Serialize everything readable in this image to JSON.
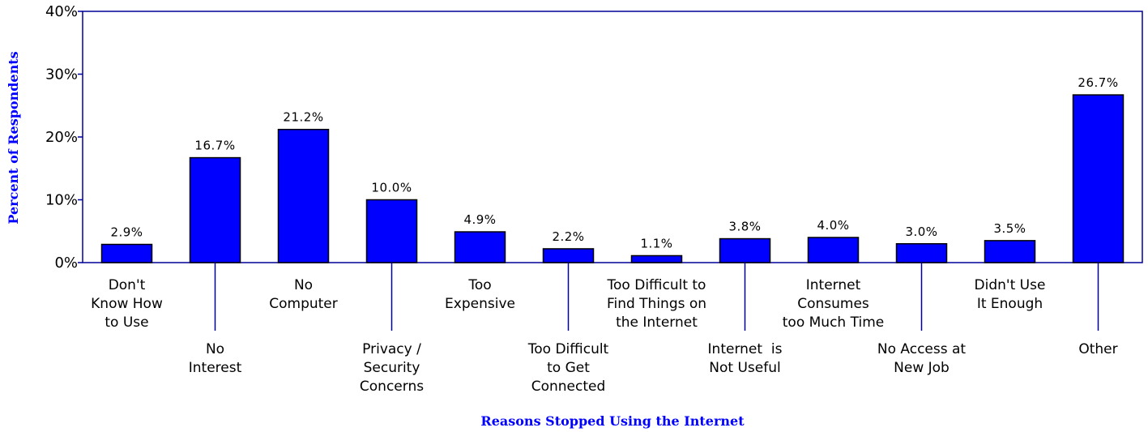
{
  "chart_data": {
    "type": "bar",
    "title": "",
    "xlabel": "Reasons Stopped Using the Internet",
    "ylabel": "Percent of Respondents",
    "ylim": [
      0,
      40
    ],
    "yticks": [
      "0%",
      "10%",
      "20%",
      "30%",
      "40%"
    ],
    "grid": false,
    "categories": [
      "Don't Know How to Use",
      "No Interest",
      "No Computer",
      "Privacy / Security Concerns",
      "Too Expensive",
      "Too Difficult to Get Connected",
      "Too Difficult to Find Things on the Internet",
      "Internet is Not Useful",
      "Internet Consumes too Much Time",
      "No Access at New Job",
      "Didn't Use It Enough",
      "Other"
    ],
    "category_label_lines": [
      [
        "Don't",
        "Know How",
        "to Use"
      ],
      [
        "No",
        "Interest"
      ],
      [
        "No",
        "Computer"
      ],
      [
        "Privacy /",
        "Security",
        "Concerns"
      ],
      [
        "Too",
        "Expensive"
      ],
      [
        "Too Difficult",
        "to Get",
        "Connected"
      ],
      [
        "Too Difficult to",
        "Find Things on",
        "the Internet"
      ],
      [
        "Internet  is",
        "Not Useful"
      ],
      [
        "Internet",
        "Consumes",
        "too Much Time"
      ],
      [
        "No Access at",
        "New Job"
      ],
      [
        "Didn't Use",
        "It Enough"
      ],
      [
        "Other"
      ]
    ],
    "values": [
      2.9,
      16.7,
      21.2,
      10.0,
      4.9,
      2.2,
      1.1,
      3.8,
      4.0,
      3.0,
      3.5,
      26.7
    ],
    "data_labels": [
      "2.9%",
      "16.7%",
      "21.2%",
      "10.0%",
      "4.9%",
      "2.2%",
      "1.1%",
      "3.8%",
      "4.0%",
      "3.0%",
      "3.5%",
      "26.7%"
    ],
    "bar_color": "#0000ff",
    "axis_color": "#00009a",
    "title_color": "#0000ff"
  }
}
